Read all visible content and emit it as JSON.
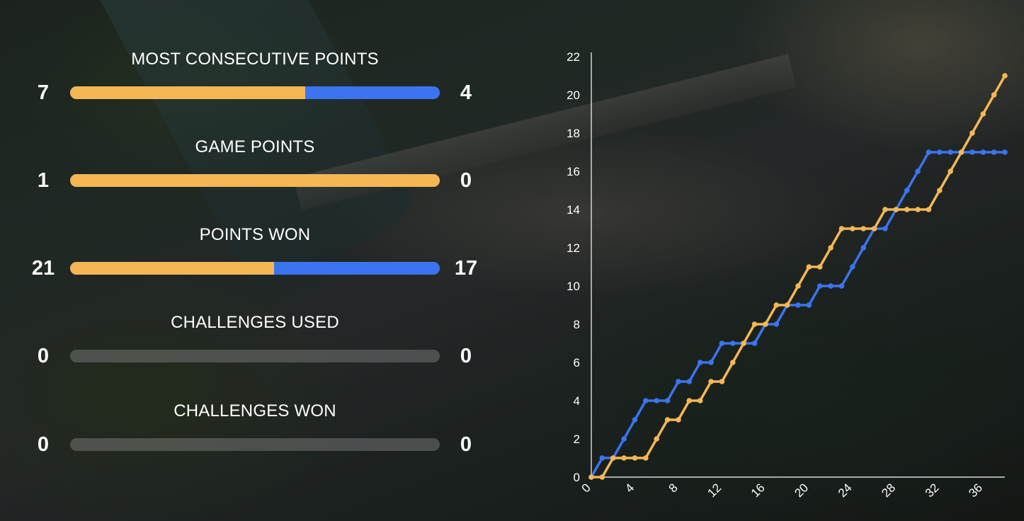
{
  "colors": {
    "player1": "#f5b754",
    "player2": "#3b74f0",
    "empty_bar": "#8a8a8a",
    "text": "#ffffff",
    "axis": "#ffffff"
  },
  "stats": [
    {
      "title": "MOST CONSECUTIVE POINTS",
      "left": 7,
      "right": 4
    },
    {
      "title": "GAME POINTS",
      "left": 1,
      "right": 0
    },
    {
      "title": "POINTS WON",
      "left": 21,
      "right": 17
    },
    {
      "title": "CHALLENGES USED",
      "left": 0,
      "right": 0
    },
    {
      "title": "CHALLENGES WON",
      "left": 0,
      "right": 0
    }
  ],
  "chart_data": {
    "type": "line",
    "title": "",
    "xlabel": "",
    "ylabel": "",
    "xlim": [
      0,
      38
    ],
    "ylim": [
      0,
      22
    ],
    "x_ticks": [
      0,
      4,
      8,
      12,
      16,
      20,
      24,
      28,
      32,
      36
    ],
    "y_ticks": [
      0,
      2,
      4,
      6,
      8,
      10,
      12,
      14,
      16,
      18,
      20,
      22
    ],
    "grid": false,
    "legend": "none",
    "series": [
      {
        "color": "#3b74f0",
        "x": [
          0,
          1,
          2,
          3,
          4,
          5,
          6,
          7,
          8,
          9,
          10,
          11,
          12,
          13,
          14,
          15,
          16,
          17,
          18,
          19,
          20,
          21,
          22,
          23,
          24,
          25,
          26,
          27,
          28,
          29,
          30,
          31,
          32,
          33,
          34,
          35,
          36,
          37,
          38
        ],
        "values": [
          0,
          1,
          1,
          2,
          3,
          4,
          4,
          4,
          5,
          5,
          6,
          6,
          7,
          7,
          7,
          7,
          8,
          8,
          9,
          9,
          9,
          10,
          10,
          10,
          11,
          12,
          13,
          13,
          14,
          15,
          16,
          17,
          17,
          17,
          17,
          17,
          17,
          17,
          17
        ]
      },
      {
        "color": "#f5b754",
        "x": [
          0,
          1,
          2,
          3,
          4,
          5,
          6,
          7,
          8,
          9,
          10,
          11,
          12,
          13,
          14,
          15,
          16,
          17,
          18,
          19,
          20,
          21,
          22,
          23,
          24,
          25,
          26,
          27,
          28,
          29,
          30,
          31,
          32,
          33,
          34,
          35,
          36,
          37,
          38
        ],
        "values": [
          0,
          0,
          1,
          1,
          1,
          1,
          2,
          3,
          3,
          4,
          4,
          5,
          5,
          6,
          7,
          8,
          8,
          9,
          9,
          10,
          11,
          11,
          12,
          13,
          13,
          13,
          13,
          14,
          14,
          14,
          14,
          14,
          15,
          16,
          17,
          18,
          19,
          20,
          21
        ]
      }
    ]
  }
}
